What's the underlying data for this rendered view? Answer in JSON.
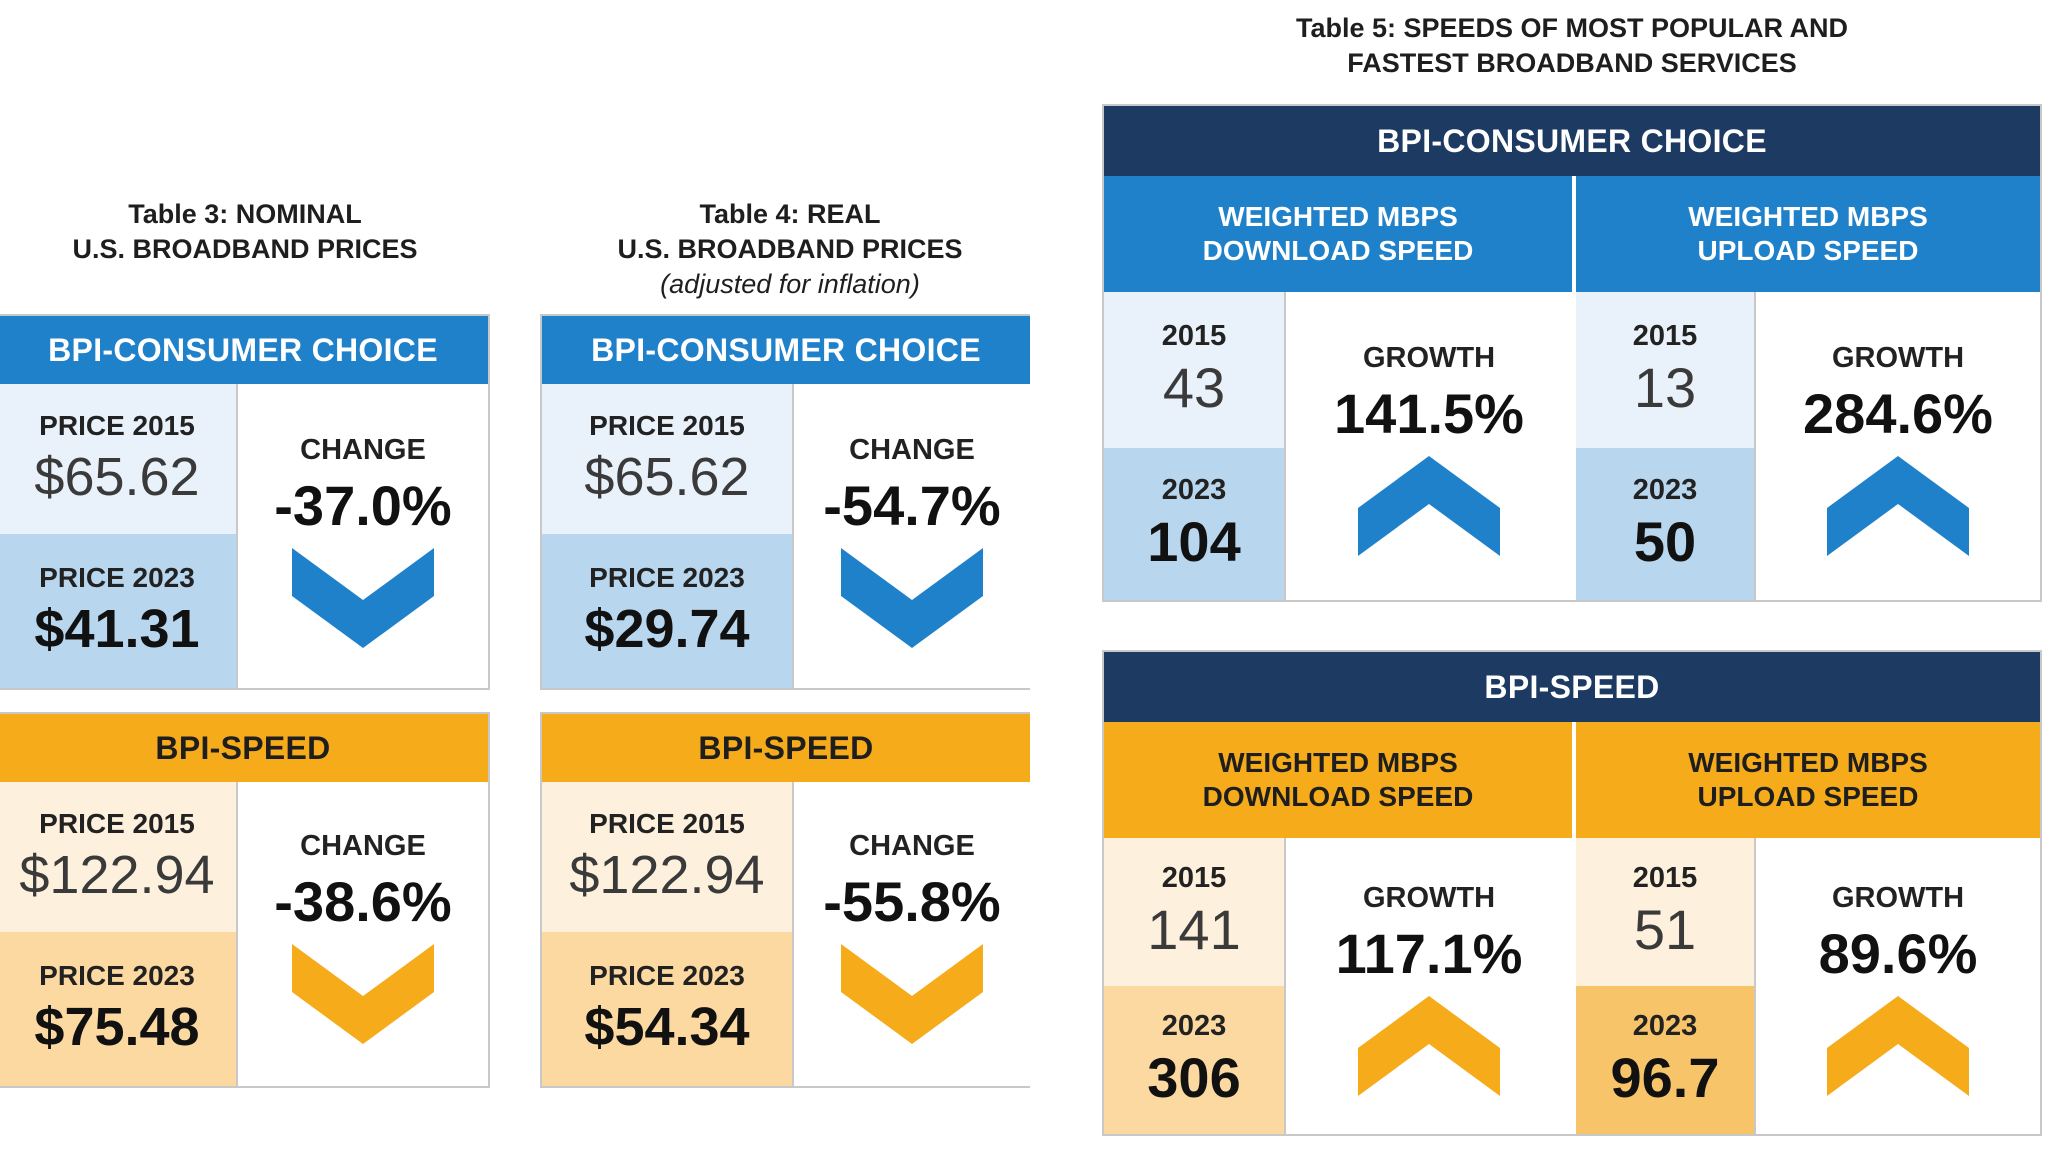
{
  "table3": {
    "title_line1": "Table 3: NOMINAL",
    "title_line2": "U.S. BROADBAND PRICES",
    "consumer": {
      "header": "BPI-CONSUMER CHOICE",
      "price2015_label": "PRICE 2015",
      "price2015_value": "$65.62",
      "price2023_label": "PRICE 2023",
      "price2023_value": "$41.31",
      "change_label": "CHANGE",
      "change_value": "-37.0%"
    },
    "speed": {
      "header": "BPI-SPEED",
      "price2015_label": "PRICE 2015",
      "price2015_value": "$122.94",
      "price2023_label": "PRICE 2023",
      "price2023_value": "$75.48",
      "change_label": "CHANGE",
      "change_value": "-38.6%"
    }
  },
  "table4": {
    "title_line1": "Table 4: REAL",
    "title_line2": "U.S. BROADBAND PRICES",
    "title_line3": "(adjusted for inflation)",
    "consumer": {
      "header": "BPI-CONSUMER CHOICE",
      "price2015_label": "PRICE 2015",
      "price2015_value": "$65.62",
      "price2023_label": "PRICE 2023",
      "price2023_value": "$29.74",
      "change_label": "CHANGE",
      "change_value": "-54.7%"
    },
    "speed": {
      "header": "BPI-SPEED",
      "price2015_label": "PRICE 2015",
      "price2015_value": "$122.94",
      "price2023_label": "PRICE 2023",
      "price2023_value": "$54.34",
      "change_label": "CHANGE",
      "change_value": "-55.8%"
    }
  },
  "table5": {
    "title_line1": "Table 5:  SPEEDS OF MOST POPULAR AND",
    "title_line2": "FASTEST BROADBAND SERVICES",
    "consumer": {
      "header": "BPI-CONSUMER CHOICE",
      "download": {
        "head_line1": "WEIGHTED MBPS",
        "head_line2": "DOWNLOAD SPEED",
        "y2015_label": "2015",
        "y2015_value": "43",
        "y2023_label": "2023",
        "y2023_value": "104",
        "growth_label": "GROWTH",
        "growth_value": "141.5%"
      },
      "upload": {
        "head_line1": "WEIGHTED MBPS",
        "head_line2": "UPLOAD SPEED",
        "y2015_label": "2015",
        "y2015_value": "13",
        "y2023_label": "2023",
        "y2023_value": "50",
        "growth_label": "GROWTH",
        "growth_value": "284.6%"
      }
    },
    "speed": {
      "header": "BPI-SPEED",
      "download": {
        "head_line1": "WEIGHTED MBPS",
        "head_line2": "DOWNLOAD SPEED",
        "y2015_label": "2015",
        "y2015_value": "141",
        "y2023_label": "2023",
        "y2023_value": "306",
        "growth_label": "GROWTH",
        "growth_value": "117.1%"
      },
      "upload": {
        "head_line1": "WEIGHTED MBPS",
        "head_line2": "UPLOAD SPEED",
        "y2015_label": "2015",
        "y2015_value": "51",
        "y2023_label": "2023",
        "y2023_value": "96.7",
        "growth_label": "GROWTH",
        "growth_value": "89.6%"
      }
    }
  },
  "icons": {
    "down": "chevron-down-icon",
    "up": "chevron-up-icon"
  },
  "colors": {
    "blue": "#2081cb",
    "gold": "#f6ab1b",
    "navy": "#1d3a63"
  }
}
